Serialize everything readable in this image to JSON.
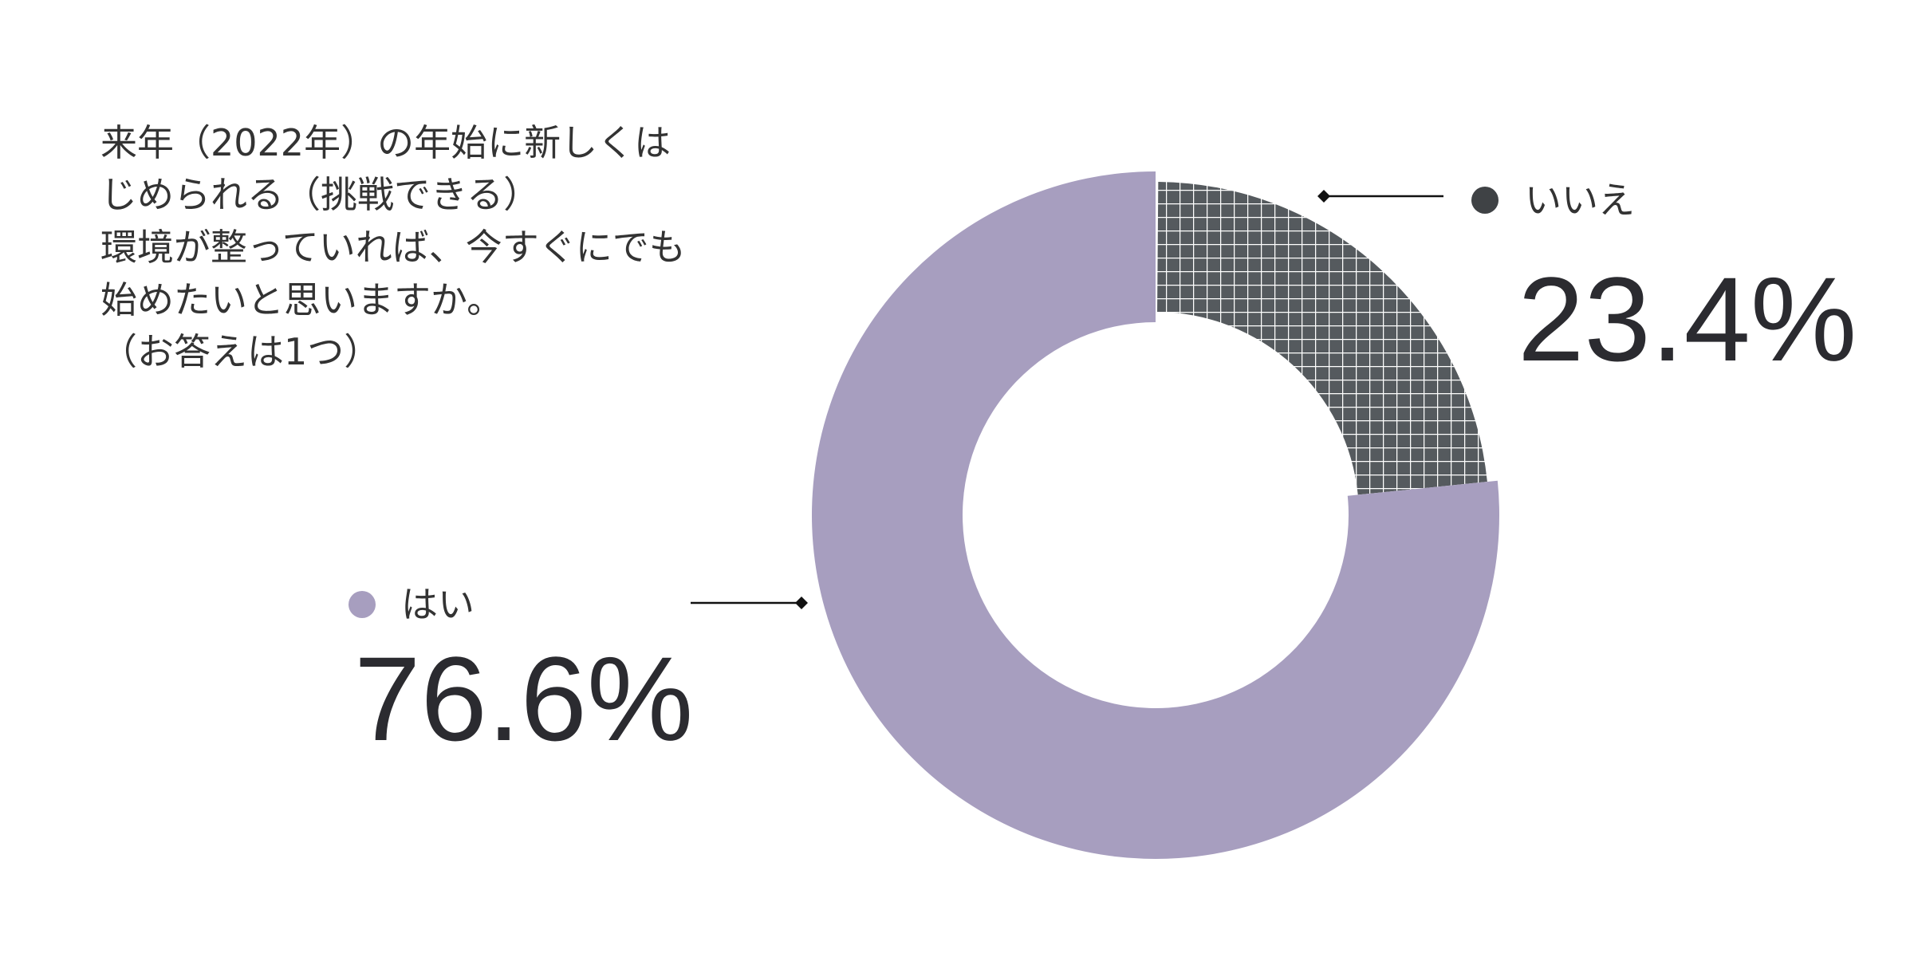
{
  "chart_data": {
    "type": "pie",
    "donut": true,
    "title": [
      "来年（2022年）の年始に新しくは",
      "じめられる（挑戦できる）",
      "環境が整っていれば、今すぐにでも",
      "始めたいと思いますか。",
      "（お答えは1つ）"
    ],
    "categories": [
      "いいえ",
      "はい"
    ],
    "values": [
      23.4,
      76.6
    ],
    "value_labels": [
      "23.4%",
      "76.6%"
    ],
    "colors": [
      "#555a5e",
      "#a79ebf"
    ],
    "patterns": [
      "grid",
      "none"
    ]
  }
}
